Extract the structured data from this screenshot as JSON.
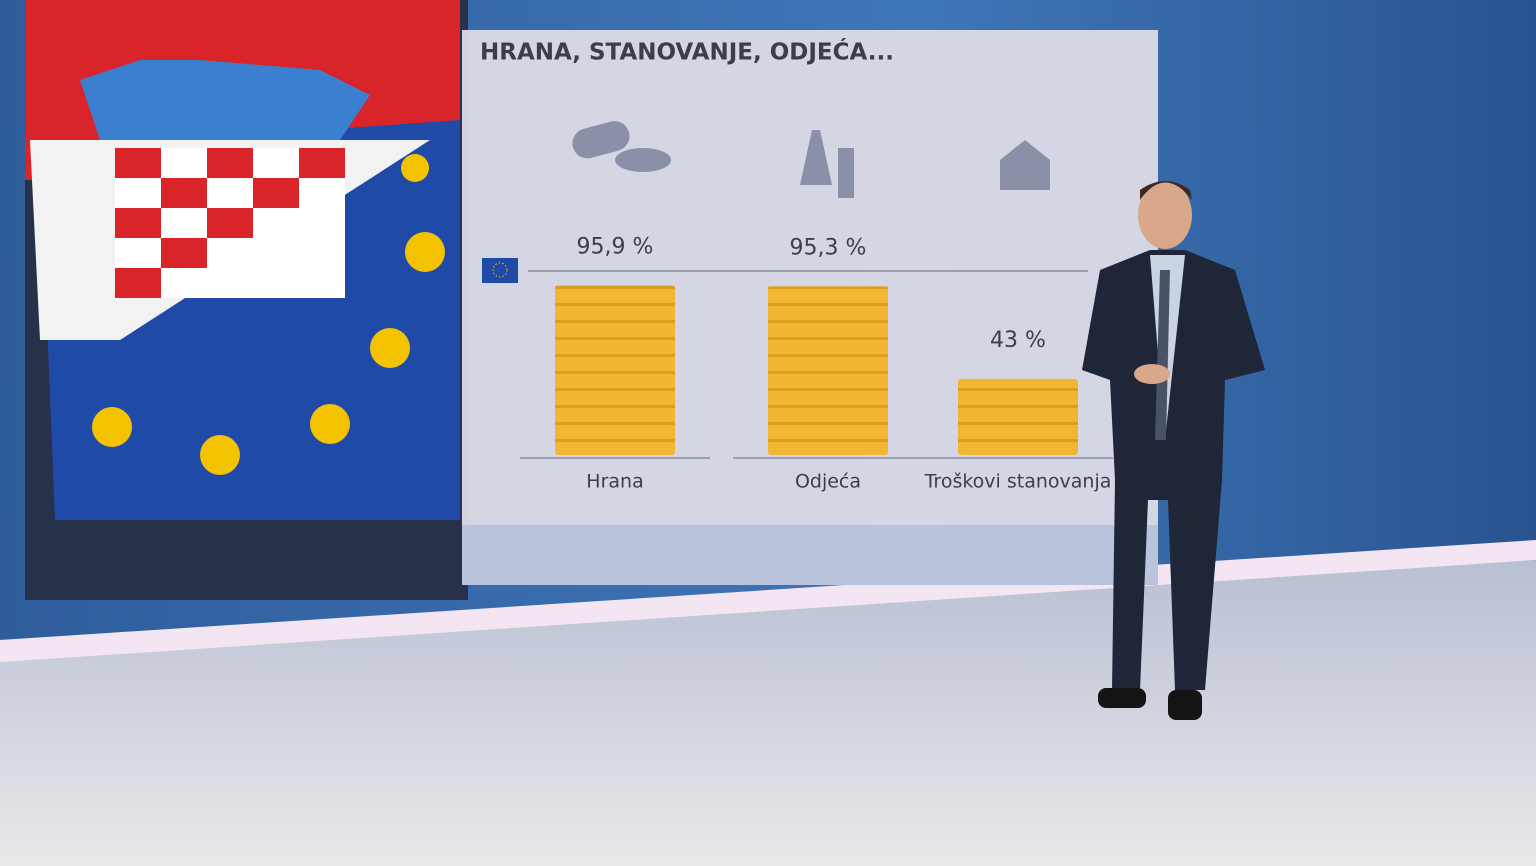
{
  "chart_data": {
    "type": "bar",
    "title": "HRANA, STANOVANJE, ODJEĆA...",
    "categories": [
      "Hrana",
      "Odjeća",
      "Troškovi stanovanja"
    ],
    "values": [
      95.9,
      95.3,
      43
    ],
    "value_labels": [
      "95,9 %",
      "95,3 %",
      "43 %"
    ],
    "color": "#f2b632"
  }
}
